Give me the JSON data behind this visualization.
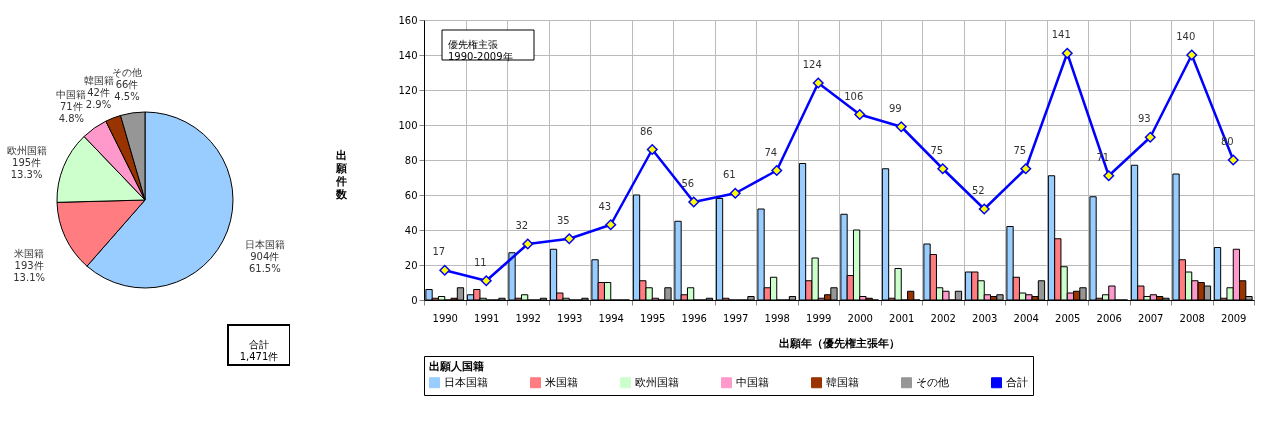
{
  "chart_data": [
    {
      "type": "pie",
      "categories": [
        "日本国籍",
        "米国籍",
        "欧州国籍",
        "中国籍",
        "韓国籍",
        "その他"
      ],
      "values": [
        904,
        193,
        195,
        71,
        42,
        66
      ],
      "value_labels": [
        "904件\n61.5%",
        "193件\n13.1%",
        "195件\n13.3%",
        "71件\n4.8%",
        "42件\n2.9%",
        "66件\n4.5%"
      ],
      "colors": [
        "#99ccff",
        "#ff7c80",
        "#ccffcc",
        "#ff99cc",
        "#993300",
        "#969696"
      ],
      "annotations": [
        "合計\n1,471件"
      ]
    },
    {
      "type": "bar",
      "categories": [
        "1990",
        "1991",
        "1992",
        "1993",
        "1994",
        "1995",
        "1996",
        "1997",
        "1998",
        "1999",
        "2000",
        "2001",
        "2002",
        "2003",
        "2004",
        "2005",
        "2006",
        "2007",
        "2008",
        "2009"
      ],
      "ylim": [
        0,
        160
      ],
      "yticks": [
        0,
        20,
        40,
        60,
        80,
        100,
        120,
        140,
        160
      ],
      "ylabel": "出願件数",
      "xlabel": "出願年（優先権主張年）",
      "legend_title": "出願人国籍",
      "legend": "bottom",
      "grid": true,
      "marker": "diamond",
      "annotations": [
        "優先権主張\n1990-2009年"
      ],
      "series": [
        {
          "name": "日本国籍",
          "color": "#99ccff",
          "values": [
            6,
            3,
            27,
            29,
            23,
            60,
            45,
            58,
            52,
            78,
            49,
            75,
            32,
            16,
            42,
            71,
            59,
            77,
            72,
            30
          ]
        },
        {
          "name": "米国籍",
          "color": "#ff7c80",
          "values": [
            1,
            6,
            1,
            4,
            10,
            11,
            3,
            1,
            7,
            11,
            14,
            1,
            26,
            16,
            13,
            35,
            1,
            8,
            23,
            1
          ]
        },
        {
          "name": "欧州国籍",
          "color": "#ccffcc",
          "values": [
            2,
            1,
            3,
            1,
            10,
            7,
            7,
            0,
            13,
            24,
            40,
            18,
            7,
            11,
            4,
            19,
            3,
            2,
            16,
            7
          ]
        },
        {
          "name": "中国籍",
          "color": "#ff99cc",
          "values": [
            0,
            0,
            0,
            0,
            0,
            1,
            0,
            0,
            0,
            1,
            2,
            0,
            5,
            3,
            3,
            4,
            8,
            3,
            11,
            29
          ]
        },
        {
          "name": "韓国籍",
          "color": "#993300",
          "values": [
            1,
            0,
            0,
            0,
            0,
            0,
            0,
            0,
            0,
            3,
            1,
            5,
            0,
            2,
            2,
            5,
            0,
            2,
            10,
            11
          ]
        },
        {
          "name": "その他",
          "color": "#969696",
          "values": [
            7,
            1,
            1,
            1,
            0,
            7,
            1,
            2,
            2,
            7,
            0,
            0,
            5,
            3,
            11,
            7,
            0,
            1,
            8,
            2
          ]
        },
        {
          "name": "合計",
          "type": "line",
          "color": "#0000ff",
          "values": [
            17,
            11,
            32,
            35,
            43,
            86,
            56,
            61,
            74,
            124,
            106,
            99,
            75,
            52,
            75,
            141,
            71,
            93,
            140,
            80
          ],
          "value_labels": [
            "17",
            "11",
            "32",
            "35",
            "43",
            "86",
            "56",
            "61",
            "74",
            "124",
            "106",
            "99",
            "75",
            "52",
            "75",
            "141",
            "71",
            "93",
            "140",
            "80"
          ]
        }
      ]
    }
  ]
}
